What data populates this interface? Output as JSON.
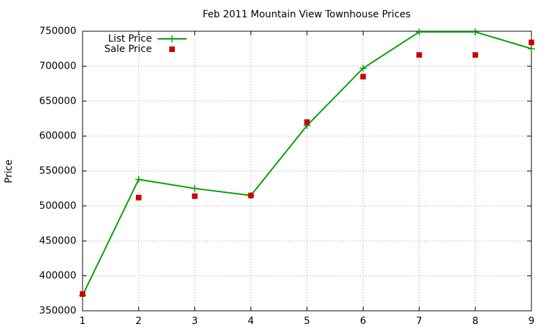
{
  "chart_data": {
    "type": "line",
    "title": "Feb 2011 Mountain View Townhouse Prices",
    "y_label": "Price",
    "x": [
      1,
      2,
      3,
      4,
      5,
      6,
      7,
      8,
      9
    ],
    "series": [
      {
        "name": "List Price",
        "color": "#00a000",
        "mode": "lines+points",
        "values": [
          372000,
          538000,
          525000,
          515000,
          615000,
          697000,
          749000,
          749000,
          725000
        ]
      },
      {
        "name": "Sale Price",
        "color": "#cc0000",
        "mode": "points",
        "values": [
          374000,
          512000,
          514000,
          515000,
          620000,
          685000,
          716000,
          716000,
          734000
        ]
      }
    ],
    "xlim": [
      1,
      9
    ],
    "xticks": [
      1,
      2,
      3,
      4,
      5,
      6,
      7,
      8,
      9
    ],
    "ylim": [
      350000,
      750000
    ],
    "yticks": [
      350000,
      400000,
      450000,
      500000,
      550000,
      600000,
      650000,
      700000,
      750000
    ],
    "grid": true,
    "legend": "top-left"
  }
}
